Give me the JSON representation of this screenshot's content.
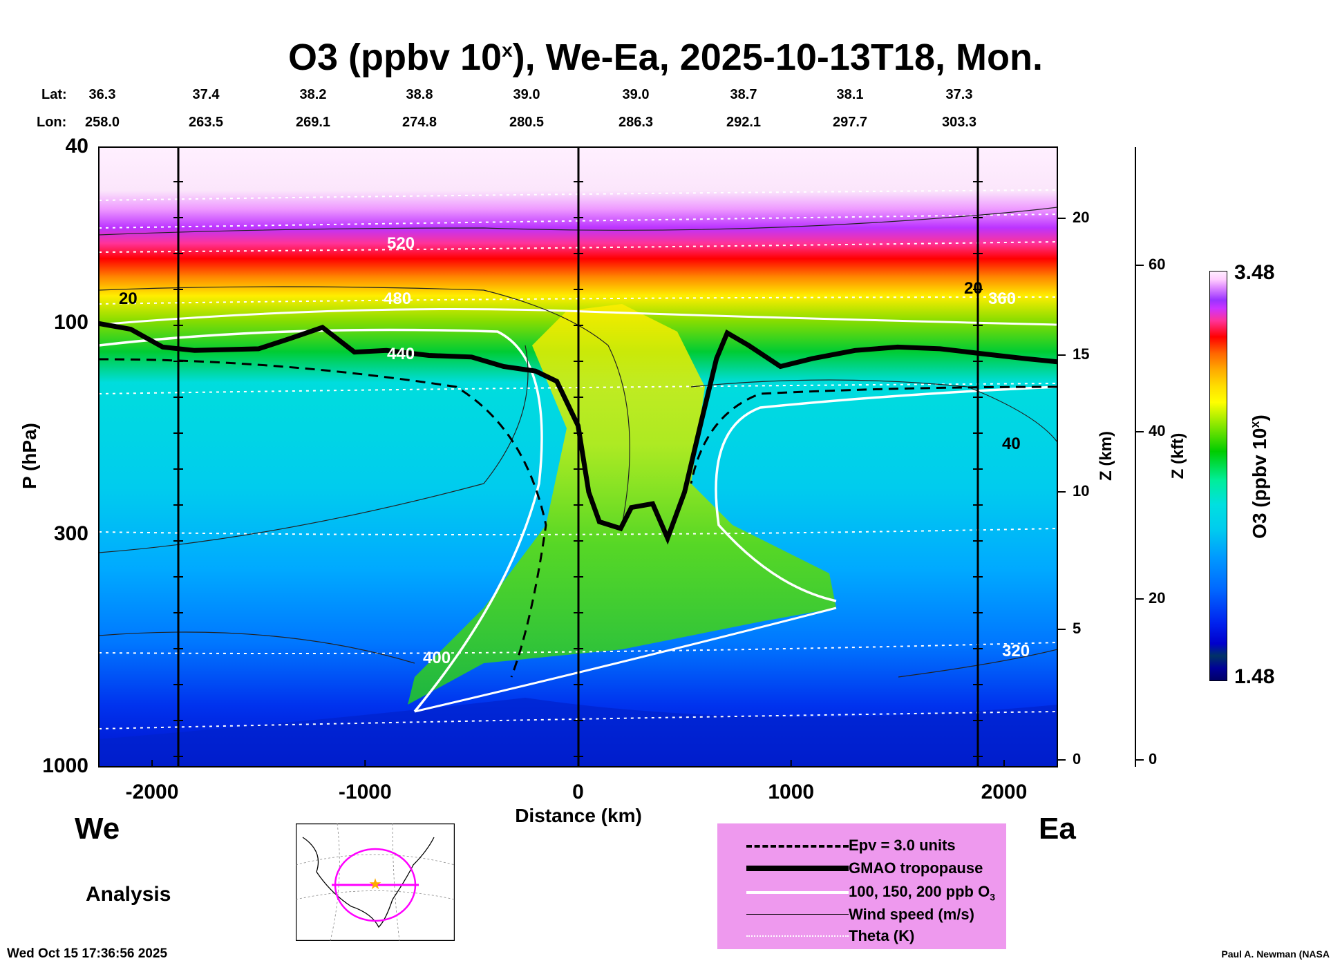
{
  "chart_data": {
    "type": "heatmap",
    "title": "O3 (ppbv 10",
    "title_sup": "x",
    "title_rest": "), We-Ea, 2025-10-13T18, Mon.",
    "lat_label": "Lat:",
    "lon_label": "Lon:",
    "lat": [
      "36.3",
      "37.4",
      "38.2",
      "38.8",
      "39.0",
      "39.0",
      "38.7",
      "38.1",
      "37.3"
    ],
    "lon": [
      "258.0",
      "263.5",
      "269.1",
      "274.8",
      "280.5",
      "286.3",
      "292.1",
      "297.7",
      "303.3"
    ],
    "xlabel": "Distance (km)",
    "ylabel": "P (hPa)",
    "xlim": [
      -2250,
      2250
    ],
    "ylim": [
      1000,
      40
    ],
    "xticks": [
      "-2000",
      "-1000",
      "0",
      "1000",
      "2000"
    ],
    "yticks": [
      "40",
      "100",
      "300",
      "1000"
    ],
    "zkm_label": "Z (km)",
    "zkm_ticks": [
      "20",
      "15",
      "10",
      "5",
      "0"
    ],
    "zkft_label": "Z (kft)",
    "zkft_ticks": [
      "60",
      "40",
      "20",
      "0"
    ],
    "colorbar_label": "O3 (ppbv 10",
    "colorbar_label_sup": "x",
    "colorbar_label_end": ")",
    "colorbar_max": "3.48",
    "colorbar_min": "1.48",
    "tropopause_hPa": [
      [
        -2250,
        100
      ],
      [
        -2100,
        103
      ],
      [
        -1950,
        113
      ],
      [
        -1800,
        115
      ],
      [
        -1500,
        114
      ],
      [
        -1350,
        108
      ],
      [
        -1200,
        102
      ],
      [
        -1050,
        116
      ],
      [
        -900,
        115
      ],
      [
        -700,
        118
      ],
      [
        -500,
        119
      ],
      [
        -350,
        125
      ],
      [
        -200,
        128
      ],
      [
        -100,
        135
      ],
      [
        0,
        170
      ],
      [
        50,
        240
      ],
      [
        100,
        280
      ],
      [
        200,
        290
      ],
      [
        250,
        260
      ],
      [
        350,
        255
      ],
      [
        420,
        305
      ],
      [
        500,
        240
      ],
      [
        580,
        165
      ],
      [
        650,
        120
      ],
      [
        700,
        105
      ],
      [
        800,
        112
      ],
      [
        950,
        125
      ],
      [
        1100,
        120
      ],
      [
        1300,
        115
      ],
      [
        1500,
        113
      ],
      [
        1700,
        114
      ],
      [
        1900,
        117
      ],
      [
        2100,
        120
      ],
      [
        2250,
        122
      ]
    ],
    "contour_labels": {
      "theta_K": [
        "520",
        "480",
        "440",
        "400",
        "360",
        "320"
      ],
      "wind_ms": [
        "20",
        "40"
      ]
    },
    "we_label": "We",
    "ea_label": "Ea",
    "analysis_label": "Analysis",
    "legend": [
      {
        "label": "Epv = 3.0 units",
        "style": "dashed"
      },
      {
        "label": "GMAO tropopause",
        "style": "thick"
      },
      {
        "label": "100, 150, 200 ppb O",
        "sub": "3",
        "style": "white"
      },
      {
        "label": "Wind speed (m/s)",
        "style": "thin"
      },
      {
        "label": "Theta (K)",
        "style": "dotted"
      }
    ],
    "timestamp": "Wed Oct 15 17:36:56 2025",
    "credit": "Paul A. Newman (NASA"
  }
}
